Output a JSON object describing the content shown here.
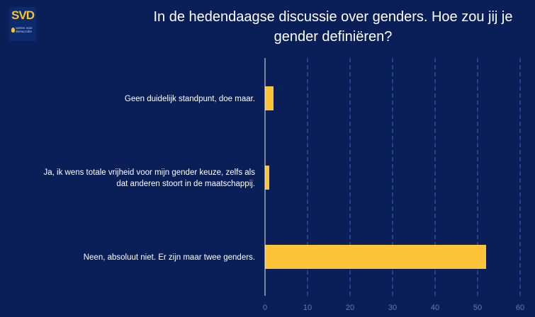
{
  "logo": {
    "text": "SVD",
    "subtitle": "samen voor democratie"
  },
  "chart_data": {
    "type": "bar",
    "orientation": "horizontal",
    "title_lines": [
      "In de hedendaagse discussie over genders. Hoe zou jij je",
      "gender definiëren?"
    ],
    "categories": [
      "Geen duidelijk standpunt, doe maar.",
      "Ja, ik wens totale vrijheid voor mijn gender keuze, zelfs als dat anderen stoort in de maatschappij.",
      "Neen, absoluut niet. Er zijn maar twee genders."
    ],
    "category_lines": [
      [
        "Geen duidelijk standpunt, doe maar."
      ],
      [
        "Ja, ik wens totale vrijheid voor mijn gender keuze, zelfs als",
        "dat anderen stoort in de maatschappij."
      ],
      [
        "Neen, absoluut niet. Er zijn maar twee genders."
      ]
    ],
    "values": [
      2,
      1,
      52
    ],
    "xlim": [
      0,
      60
    ],
    "xticks": [
      0,
      10,
      20,
      30,
      40,
      50,
      60
    ],
    "grid": "vertical dashed",
    "colors": {
      "background": "#0a1f58",
      "bar": "#fdc43a",
      "grid": "#3a64b8",
      "axis": "#e8ecf5",
      "tick_label": "#5f7ab8",
      "text": "#ffffff"
    }
  }
}
